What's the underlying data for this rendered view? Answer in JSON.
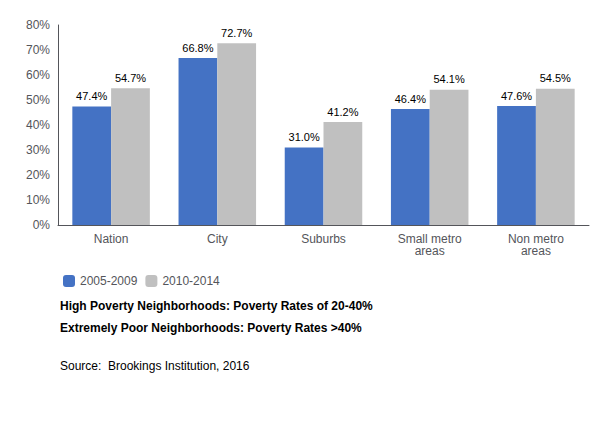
{
  "chart_data": {
    "type": "bar",
    "categories": [
      "Nation",
      "City",
      "Suburbs",
      "Small metro\nareas",
      "Non metro\nareas"
    ],
    "series": [
      {
        "name": "2005-2009",
        "color": "#4472C4",
        "values": [
          47.4,
          66.8,
          31.0,
          46.4,
          47.6
        ],
        "value_labels": [
          "47.4%",
          "66.8%",
          "31.0%",
          "46.4%",
          "47.6%"
        ]
      },
      {
        "name": "2010-2014",
        "color": "#C0C0C0",
        "values": [
          54.7,
          72.7,
          41.2,
          54.1,
          54.5
        ],
        "value_labels": [
          "54.7%",
          "72.7%",
          "41.2%",
          "54.1%",
          "54.5%"
        ]
      }
    ],
    "ylim": [
      0,
      80
    ],
    "yticks": [
      {
        "value": 0,
        "label": "0%"
      },
      {
        "value": 10,
        "label": "10%"
      },
      {
        "value": 20,
        "label": "20%"
      },
      {
        "value": 30,
        "label": "30%"
      },
      {
        "value": 40,
        "label": "40%"
      },
      {
        "value": 50,
        "label": "50%"
      },
      {
        "value": 60,
        "label": "60%"
      },
      {
        "value": 70,
        "label": "70%"
      },
      {
        "value": 80,
        "label": "80%"
      }
    ],
    "grid": false,
    "legend": "bottom",
    "data_labels": true,
    "annotations": [
      "High Poverty Neighborhoods: Poverty Rates of 20-40%",
      "Extremely Poor Neighborhoods: Poverty Rates >40%",
      "Source:  Brookings Institution, 2016"
    ]
  }
}
